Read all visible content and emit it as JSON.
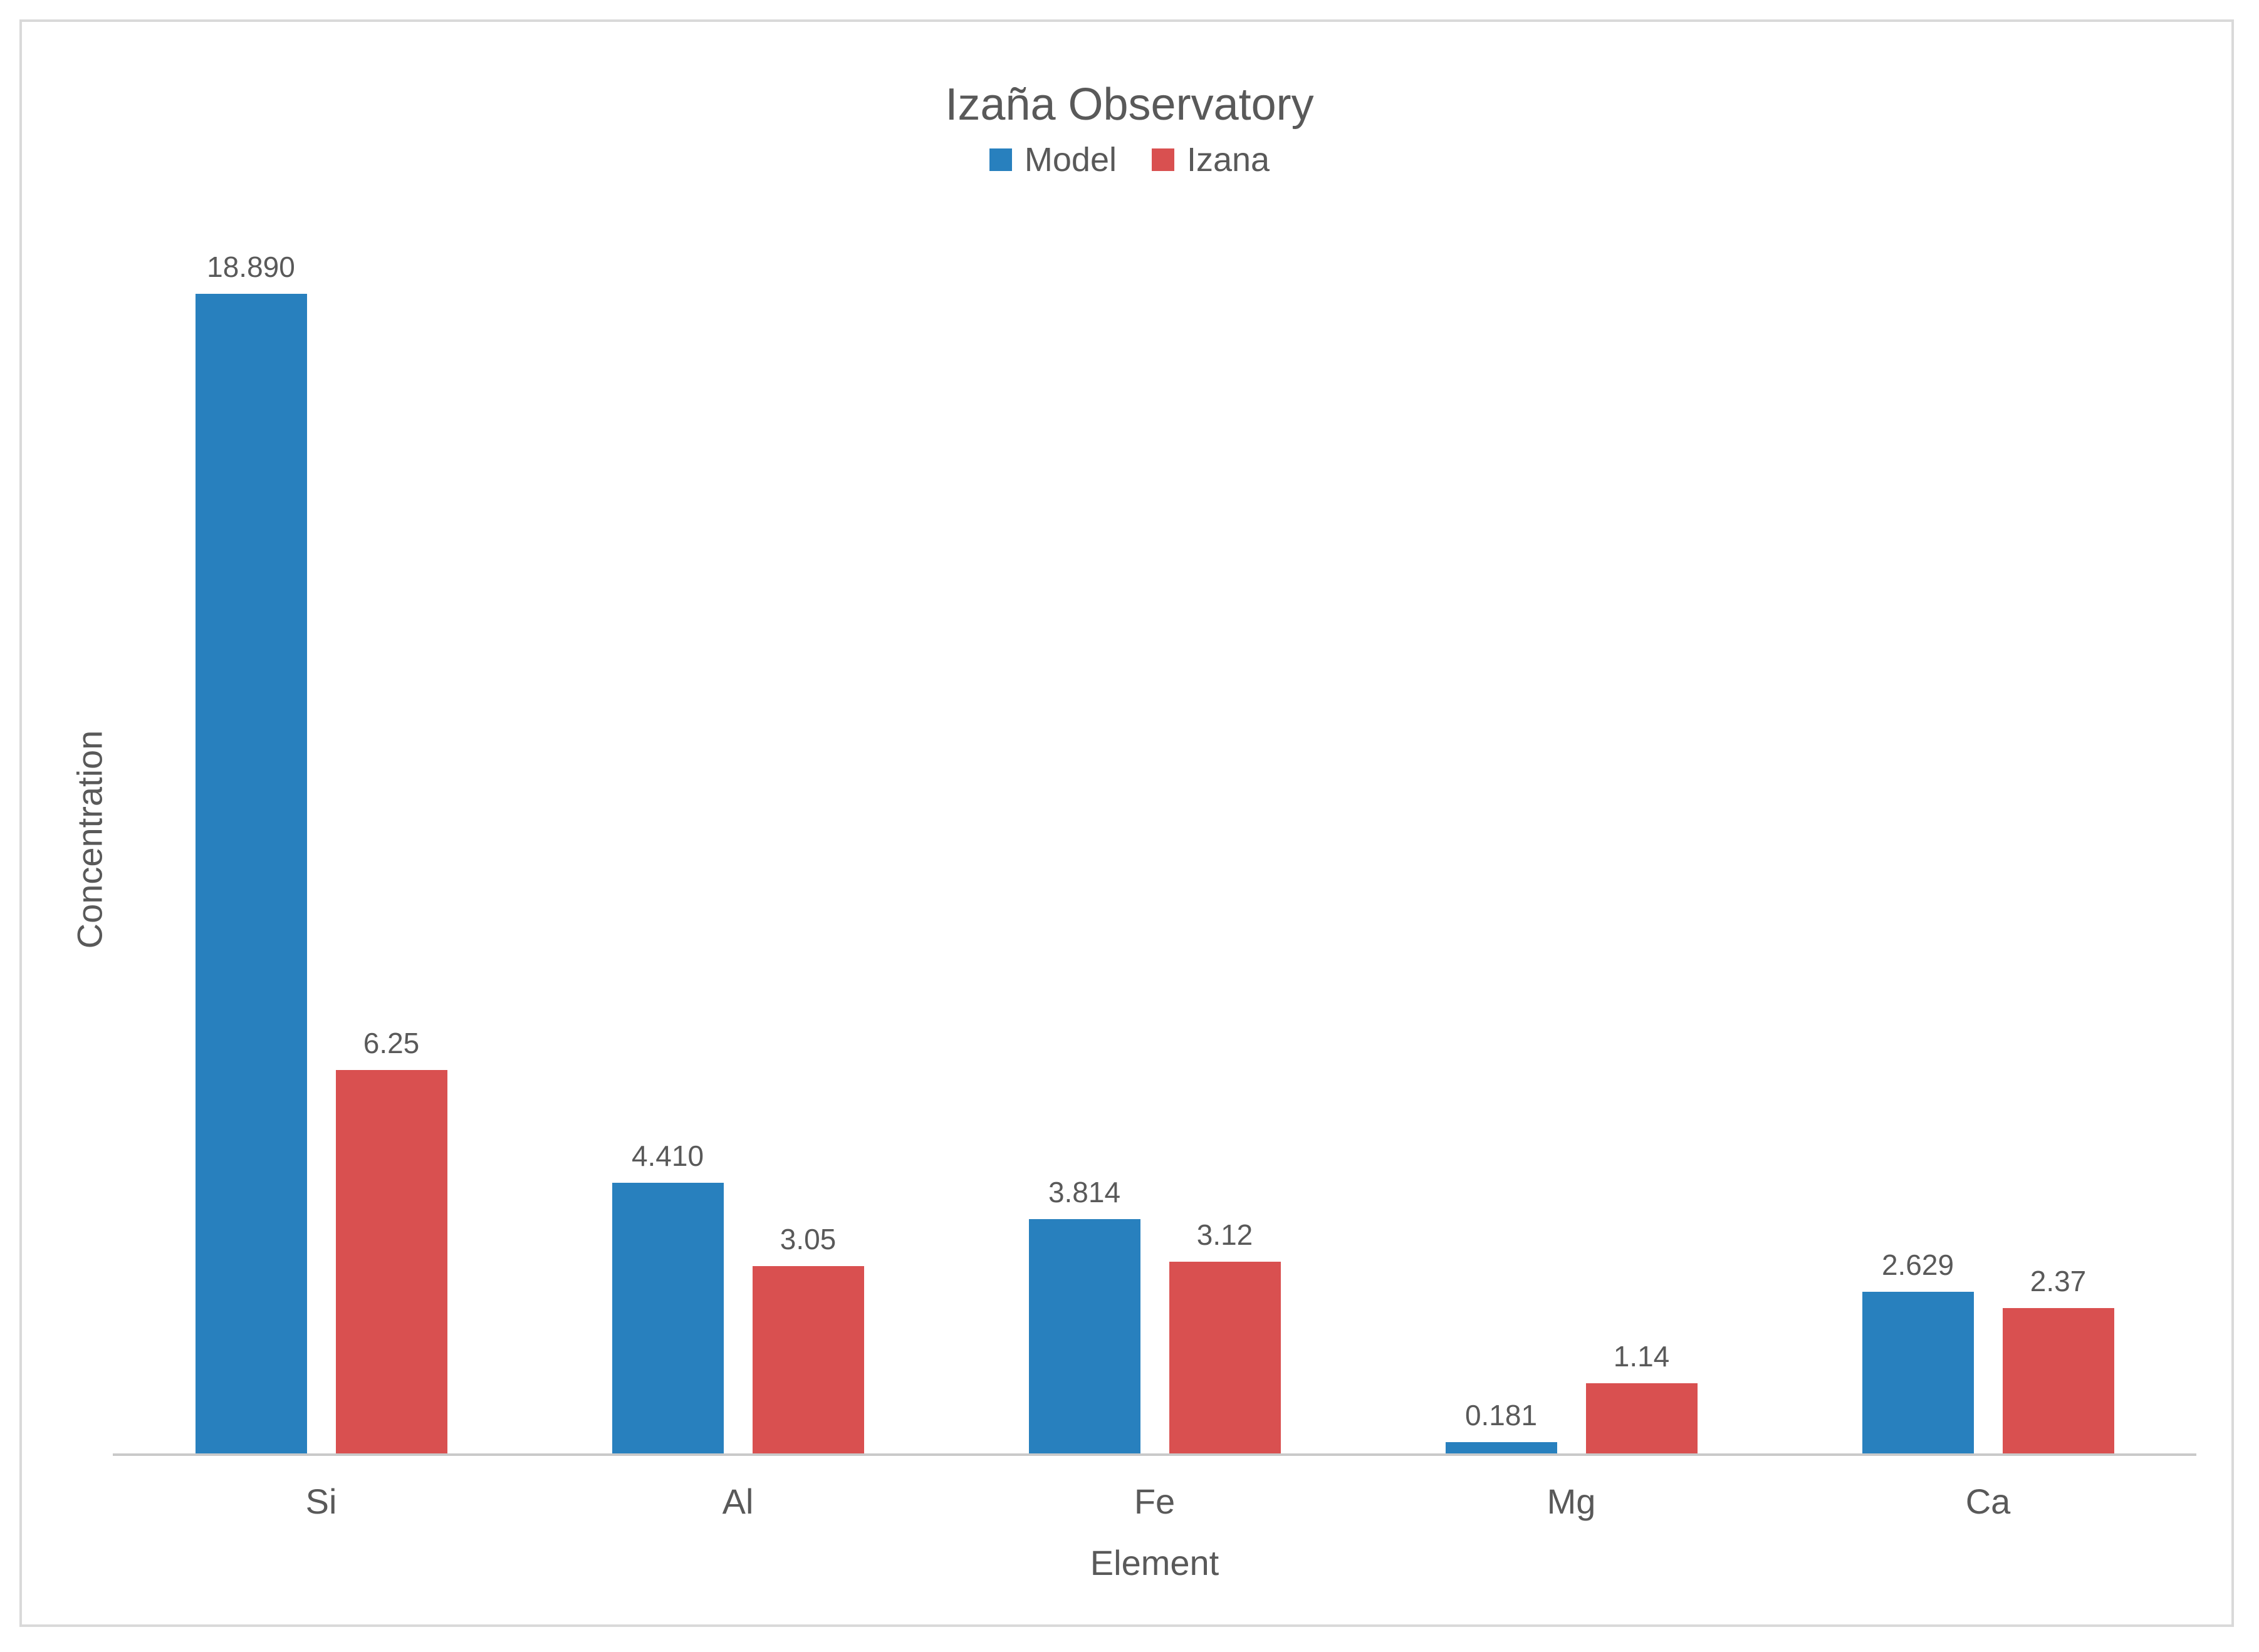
{
  "chart_data": {
    "type": "bar",
    "title": "Izaña Observatory",
    "categories": [
      "Si",
      "Al",
      "Fe",
      "Mg",
      "Ca"
    ],
    "series": [
      {
        "name": "Model",
        "color": "#2880BE",
        "values": [
          18.89,
          4.41,
          3.814,
          0.181,
          2.629
        ],
        "labels": [
          "18.890",
          "4.410",
          "3.814",
          "0.181",
          "2.629"
        ]
      },
      {
        "name": "Izana",
        "color": "#D95050",
        "values": [
          6.25,
          3.05,
          3.12,
          1.14,
          2.37
        ],
        "labels": [
          "6.25",
          "3.05",
          "3.12",
          "1.14",
          "2.37"
        ]
      }
    ],
    "xlabel": "Element",
    "ylabel": "Concentration",
    "ylim": [
      0,
      20
    ],
    "grid": false,
    "legend_position": "top",
    "data_labels": true,
    "axis_line_color": "#c9c9c9",
    "text_color": "#595959",
    "frame_border_color": "#d9d9d9"
  }
}
